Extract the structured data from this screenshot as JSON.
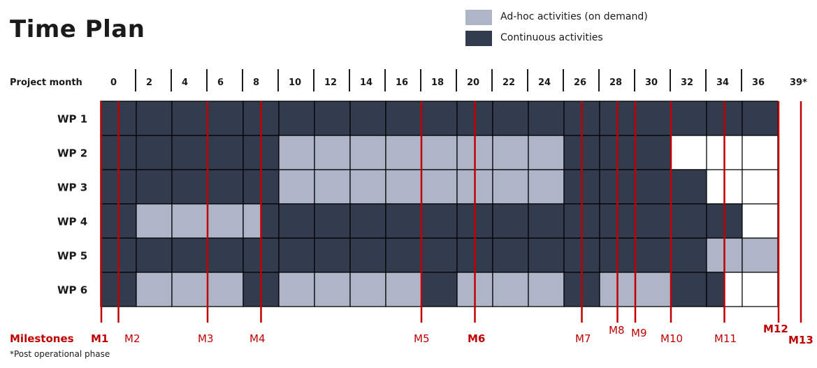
{
  "title": "Time Plan",
  "legend": [
    {
      "label": "Ad-hoc activities (on demand)",
      "color": "#aeb5c7"
    },
    {
      "label": "Continuous activities",
      "color": "#333c4e"
    }
  ],
  "header_label": "Project month",
  "months": [
    "0",
    "2",
    "4",
    "6",
    "8",
    "10",
    "12",
    "14",
    "16",
    "18",
    "20",
    "22",
    "24",
    "26",
    "28",
    "30",
    "32",
    "34",
    "36",
    "39*"
  ],
  "colors": {
    "continuous": "#333c4e",
    "adhoc": "#aeb5c7",
    "none": "#ffffff",
    "milestone": "#c00000"
  },
  "work_packages": [
    {
      "label": "WP 1",
      "cells": [
        "C",
        "C",
        "C",
        "C",
        "C",
        "C",
        "C",
        "C",
        "C",
        "C",
        "C",
        "C",
        "C",
        "C",
        "C",
        "C",
        "C",
        "C",
        "C"
      ]
    },
    {
      "label": "WP 2",
      "cells": [
        "C",
        "C",
        "C",
        "C",
        "C",
        "A",
        "A",
        "A",
        "A",
        "A",
        "A",
        "A",
        "A",
        "C",
        "C",
        "C",
        "N",
        "N",
        "N"
      ]
    },
    {
      "label": "WP 3",
      "cells": [
        "C",
        "C",
        "C",
        "C",
        "C",
        "A",
        "A",
        "A",
        "A",
        "A",
        "A",
        "A",
        "A",
        "C",
        "C",
        "C",
        "C",
        "N",
        "N"
      ]
    },
    {
      "label": "WP 4",
      "cells": [
        "C",
        "A",
        "A",
        "A",
        "A0.5",
        "C",
        "C",
        "C",
        "C",
        "C",
        "C",
        "C",
        "C",
        "C",
        "C",
        "C",
        "C",
        "C",
        "N"
      ]
    },
    {
      "label": "WP 5",
      "cells": [
        "C",
        "C",
        "C",
        "C",
        "C",
        "C",
        "C",
        "C",
        "C",
        "C",
        "C",
        "C",
        "C",
        "C",
        "C",
        "C",
        "C",
        "A",
        "A"
      ]
    },
    {
      "label": "WP 6",
      "cells": [
        "C",
        "A",
        "A",
        "A",
        "C",
        "A",
        "A",
        "A",
        "A",
        "C",
        "A",
        "A",
        "A",
        "C",
        "A",
        "A",
        "C",
        "C0.5",
        "N"
      ]
    }
  ],
  "milestones_label": "Milestones",
  "milestones": [
    {
      "label": "M1",
      "month": 0,
      "bold": true
    },
    {
      "label": "M2",
      "month": 1,
      "bold": false
    },
    {
      "label": "M3",
      "month": 6,
      "bold": false
    },
    {
      "label": "M4",
      "month": 9,
      "bold": false
    },
    {
      "label": "M5",
      "month": 18,
      "bold": false
    },
    {
      "label": "M6",
      "month": 21,
      "bold": true
    },
    {
      "label": "M7",
      "month": 27,
      "bold": false
    },
    {
      "label": "M8",
      "month": 29,
      "bold": false
    },
    {
      "label": "M9",
      "month": 30,
      "bold": false
    },
    {
      "label": "M10",
      "month": 32,
      "bold": false
    },
    {
      "label": "M11",
      "month": 35,
      "bold": false
    },
    {
      "label": "M12",
      "month": 38,
      "bold": true
    },
    {
      "label": "M13",
      "month": 39,
      "bold": true
    }
  ],
  "footnote": "*Post operational phase"
}
